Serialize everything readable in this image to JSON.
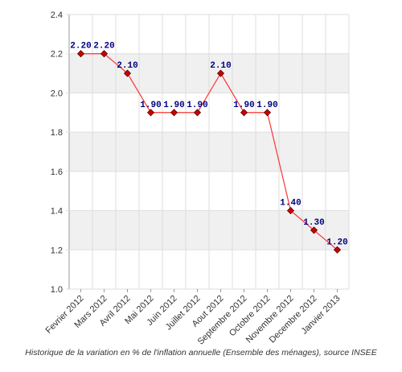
{
  "caption": "Historique de la variation en % de l'inflation annuelle (Ensemble des ménages), source INSEE",
  "chart_data": {
    "type": "line",
    "categories": [
      "Fevrier 2012",
      "Mars 2012",
      "Avril 2012",
      "Mai 2012",
      "Juin 2012",
      "Juillet 2012",
      "Aout 2012",
      "Septembre 2012",
      "Octobre 2012",
      "Novembre 2012",
      "Decembre 2012",
      "Janvier 2013"
    ],
    "values": [
      2.2,
      2.2,
      2.1,
      1.9,
      1.9,
      1.9,
      2.1,
      1.9,
      1.9,
      1.4,
      1.3,
      1.2
    ],
    "data_labels": [
      "2.20",
      "2.20",
      "2.10",
      "1.90",
      "1.90",
      "1.90",
      "2.10",
      "1.90",
      "1.90",
      "1.40",
      "1.30",
      "1.20"
    ],
    "yticks": [
      "1.0",
      "1.2",
      "1.4",
      "1.6",
      "1.8",
      "2.0",
      "2.2",
      "2.4"
    ],
    "ylim": [
      1.0,
      2.4
    ],
    "grid": true,
    "line_color": "#ff3333",
    "marker_color": "#cc0000",
    "label_color": "#000080",
    "band_color": "#f0f0f0"
  }
}
